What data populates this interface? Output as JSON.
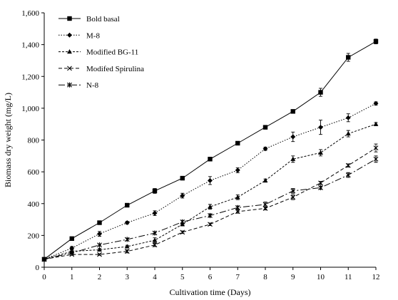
{
  "chart_data": {
    "type": "line",
    "xlabel": "Cultivation time (Days)",
    "ylabel": "Biomass dry weight (mg/L)",
    "xlim": [
      0,
      12
    ],
    "ylim": [
      0,
      1600
    ],
    "x_ticks": [
      "0",
      "1",
      "2",
      "3",
      "4",
      "5",
      "6",
      "7",
      "8",
      "9",
      "10",
      "11",
      "12"
    ],
    "y_ticks": [
      "0",
      "200",
      "400",
      "600",
      "800",
      "1,000",
      "1,200",
      "1,400",
      "1,600"
    ],
    "grid": false,
    "legend_position": "top-left",
    "x": [
      0,
      1,
      2,
      3,
      4,
      5,
      6,
      7,
      8,
      9,
      10,
      11,
      12
    ],
    "series": [
      {
        "name": "Bold basal",
        "marker": "square",
        "dash": "solid",
        "values": [
          50,
          180,
          280,
          390,
          480,
          560,
          680,
          780,
          880,
          980,
          1100,
          1320,
          1420
        ],
        "errors": [
          5,
          8,
          8,
          8,
          15,
          10,
          10,
          8,
          8,
          10,
          25,
          25,
          15
        ]
      },
      {
        "name": "M-8",
        "marker": "diamond",
        "dash": "dotted",
        "values": [
          50,
          120,
          210,
          280,
          340,
          450,
          545,
          610,
          745,
          820,
          880,
          940,
          1030
        ],
        "errors": [
          5,
          10,
          15,
          8,
          15,
          15,
          25,
          15,
          10,
          30,
          45,
          25,
          10
        ]
      },
      {
        "name": "Modified BG-11",
        "marker": "triangle",
        "dash": "short-dash",
        "values": [
          50,
          100,
          110,
          130,
          170,
          270,
          380,
          440,
          545,
          680,
          720,
          840,
          900
        ],
        "errors": [
          5,
          8,
          8,
          8,
          15,
          10,
          15,
          15,
          10,
          20,
          20,
          20,
          10
        ]
      },
      {
        "name": "Modifed Spirulina",
        "marker": "cross",
        "dash": "dash",
        "values": [
          50,
          80,
          80,
          100,
          140,
          220,
          270,
          350,
          370,
          440,
          530,
          640,
          750
        ],
        "errors": [
          5,
          5,
          5,
          10,
          10,
          8,
          8,
          10,
          10,
          15,
          10,
          10,
          25
        ]
      },
      {
        "name": "N-8",
        "marker": "asterisk",
        "dash": "long-dash",
        "values": [
          50,
          90,
          140,
          175,
          215,
          285,
          325,
          375,
          395,
          480,
          500,
          580,
          680
        ],
        "errors": [
          5,
          5,
          5,
          8,
          8,
          10,
          10,
          10,
          15,
          15,
          10,
          15,
          20
        ]
      }
    ]
  }
}
